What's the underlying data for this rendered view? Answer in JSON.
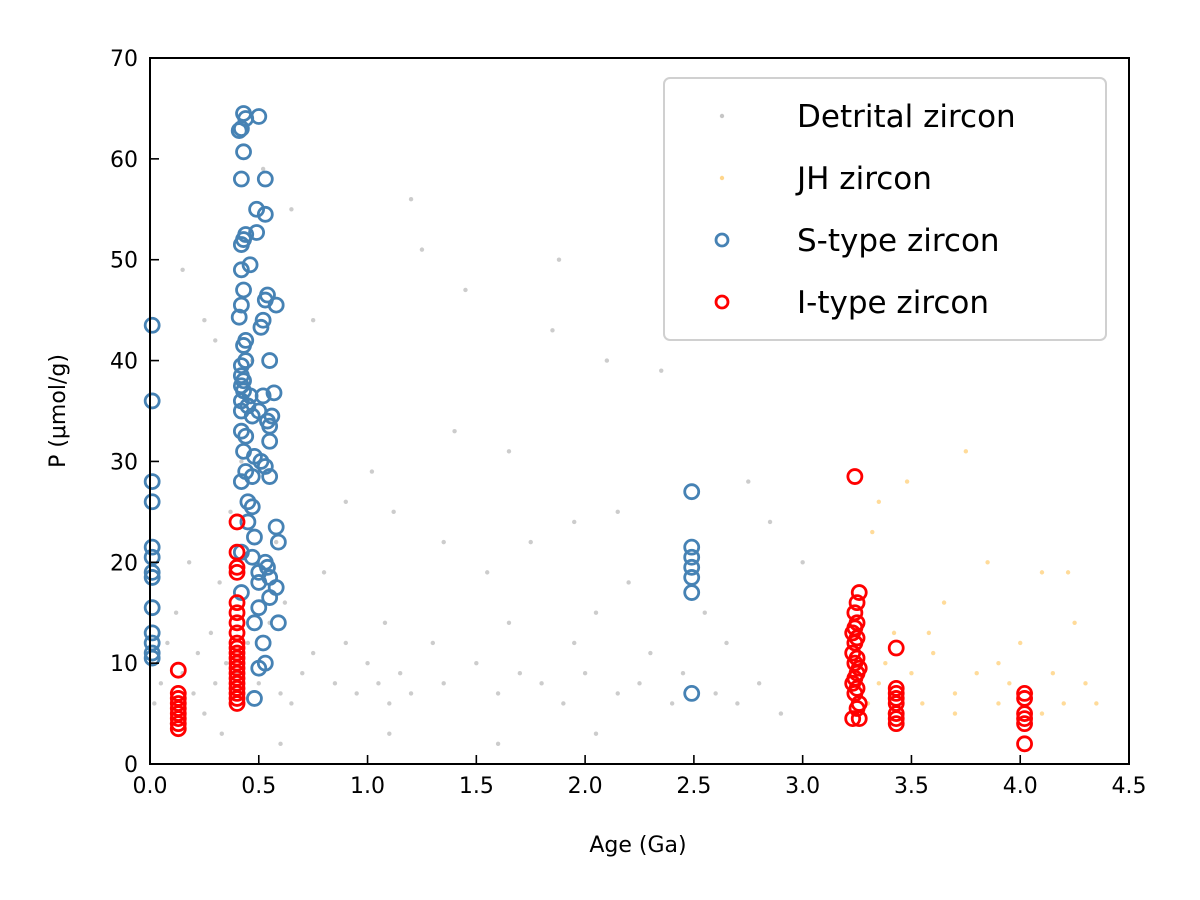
{
  "chart_data": {
    "type": "scatter",
    "title": "",
    "xlabel": "Age (Ga)",
    "ylabel": "P (μmol/g)",
    "xlim": [
      0,
      4.5
    ],
    "ylim": [
      0,
      70
    ],
    "xticks": [
      0.0,
      0.5,
      1.0,
      1.5,
      2.0,
      2.5,
      3.0,
      3.5,
      4.0,
      4.5
    ],
    "xtick_labels": [
      "0.0",
      "0.5",
      "1.0",
      "1.5",
      "2.0",
      "2.5",
      "3.0",
      "3.5",
      "4.0",
      "4.5"
    ],
    "yticks": [
      0,
      10,
      20,
      30,
      40,
      50,
      60,
      70
    ],
    "ytick_labels": [
      "0",
      "10",
      "20",
      "30",
      "40",
      "50",
      "60",
      "70"
    ],
    "grid": false,
    "legend": "top-right",
    "legend_entries": [
      "Detrital zircon",
      "JH zircon",
      "S-type zircon",
      "I-type zircon"
    ],
    "colors": {
      "detrital": "#808080",
      "jh": "#FFA500",
      "s_type": "#4682B4",
      "i_type": "#FF0000"
    },
    "series": [
      {
        "name": "Detrital zircon",
        "marker": "dot",
        "color": "#808080",
        "points": [
          [
            0.02,
            6
          ],
          [
            0.05,
            8
          ],
          [
            0.08,
            12
          ],
          [
            0.1,
            4
          ],
          [
            0.12,
            15
          ],
          [
            0.15,
            9
          ],
          [
            0.18,
            20
          ],
          [
            0.2,
            7
          ],
          [
            0.22,
            11
          ],
          [
            0.25,
            5
          ],
          [
            0.28,
            13
          ],
          [
            0.3,
            8
          ],
          [
            0.32,
            18
          ],
          [
            0.35,
            10
          ],
          [
            0.37,
            25
          ],
          [
            0.4,
            9
          ],
          [
            0.42,
            30
          ],
          [
            0.45,
            12
          ],
          [
            0.47,
            40
          ],
          [
            0.5,
            8
          ],
          [
            0.52,
            59
          ],
          [
            0.55,
            14
          ],
          [
            0.58,
            22
          ],
          [
            0.6,
            7
          ],
          [
            0.62,
            16
          ],
          [
            0.65,
            6
          ],
          [
            0.7,
            9
          ],
          [
            0.75,
            11
          ],
          [
            0.8,
            19
          ],
          [
            0.85,
            8
          ],
          [
            0.9,
            12
          ],
          [
            0.95,
            7
          ],
          [
            1.0,
            10
          ],
          [
            1.02,
            29
          ],
          [
            1.05,
            8
          ],
          [
            1.08,
            14
          ],
          [
            1.1,
            6
          ],
          [
            1.12,
            25
          ],
          [
            1.15,
            9
          ],
          [
            1.2,
            7
          ],
          [
            1.25,
            51
          ],
          [
            1.3,
            12
          ],
          [
            1.35,
            8
          ],
          [
            1.4,
            33
          ],
          [
            1.45,
            47
          ],
          [
            1.5,
            10
          ],
          [
            1.55,
            19
          ],
          [
            1.6,
            7
          ],
          [
            1.65,
            14
          ],
          [
            1.7,
            9
          ],
          [
            1.75,
            22
          ],
          [
            1.8,
            8
          ],
          [
            1.85,
            43
          ],
          [
            1.88,
            50
          ],
          [
            1.9,
            6
          ],
          [
            1.95,
            12
          ],
          [
            2.0,
            9
          ],
          [
            2.05,
            15
          ],
          [
            2.1,
            40
          ],
          [
            2.15,
            7
          ],
          [
            2.2,
            18
          ],
          [
            2.25,
            8
          ],
          [
            2.3,
            11
          ],
          [
            2.35,
            39
          ],
          [
            2.4,
            6
          ],
          [
            2.45,
            9
          ],
          [
            2.55,
            15
          ],
          [
            2.6,
            7
          ],
          [
            2.65,
            12
          ],
          [
            2.7,
            6
          ],
          [
            2.75,
            28
          ],
          [
            2.8,
            8
          ],
          [
            2.85,
            24
          ],
          [
            2.9,
            5
          ],
          [
            3.0,
            20
          ],
          [
            0.15,
            49
          ],
          [
            0.25,
            44
          ],
          [
            0.3,
            42
          ],
          [
            0.65,
            55
          ],
          [
            0.75,
            44
          ],
          [
            1.2,
            56
          ],
          [
            0.9,
            26
          ],
          [
            1.35,
            22
          ],
          [
            1.65,
            31
          ],
          [
            1.95,
            24
          ],
          [
            2.15,
            25
          ],
          [
            0.33,
            3
          ],
          [
            0.6,
            2
          ],
          [
            1.1,
            3
          ],
          [
            1.6,
            2
          ],
          [
            2.05,
            3
          ]
        ]
      },
      {
        "name": "JH zircon",
        "marker": "dot",
        "color": "#FFA500",
        "points": [
          [
            3.3,
            6
          ],
          [
            3.32,
            23
          ],
          [
            3.35,
            8
          ],
          [
            3.38,
            10
          ],
          [
            3.4,
            5
          ],
          [
            3.42,
            13
          ],
          [
            3.45,
            7
          ],
          [
            3.48,
            28
          ],
          [
            3.5,
            9
          ],
          [
            3.55,
            6
          ],
          [
            3.6,
            11
          ],
          [
            3.65,
            16
          ],
          [
            3.7,
            7
          ],
          [
            3.75,
            31
          ],
          [
            3.8,
            9
          ],
          [
            3.85,
            20
          ],
          [
            3.9,
            6
          ],
          [
            3.95,
            8
          ],
          [
            4.0,
            12
          ],
          [
            4.05,
            7
          ],
          [
            4.1,
            19
          ],
          [
            4.15,
            9
          ],
          [
            4.2,
            6
          ],
          [
            4.25,
            14
          ],
          [
            4.3,
            8
          ],
          [
            4.35,
            6
          ],
          [
            3.45,
            4
          ],
          [
            3.7,
            5
          ],
          [
            3.9,
            10
          ],
          [
            4.1,
            5
          ],
          [
            4.22,
            19
          ],
          [
            3.35,
            26
          ],
          [
            3.58,
            13
          ]
        ]
      },
      {
        "name": "S-type zircon",
        "marker": "open-circle",
        "color": "#4682B4",
        "points": [
          [
            0.01,
            43.5
          ],
          [
            0.01,
            36
          ],
          [
            0.01,
            28
          ],
          [
            0.01,
            26
          ],
          [
            0.01,
            21.5
          ],
          [
            0.01,
            20.5
          ],
          [
            0.01,
            19
          ],
          [
            0.01,
            18.5
          ],
          [
            0.01,
            15.5
          ],
          [
            0.01,
            13
          ],
          [
            0.01,
            12
          ],
          [
            0.01,
            11
          ],
          [
            0.01,
            10.5
          ],
          [
            0.43,
            64.5
          ],
          [
            0.44,
            64
          ],
          [
            0.5,
            64.2
          ],
          [
            0.42,
            63
          ],
          [
            0.41,
            62.8
          ],
          [
            0.43,
            60.7
          ],
          [
            0.42,
            58
          ],
          [
            0.53,
            58
          ],
          [
            0.49,
            55
          ],
          [
            0.53,
            54.5
          ],
          [
            0.49,
            52.7
          ],
          [
            0.43,
            52
          ],
          [
            0.44,
            52.5
          ],
          [
            0.42,
            51.5
          ],
          [
            0.46,
            49.5
          ],
          [
            0.42,
            49
          ],
          [
            0.43,
            47
          ],
          [
            0.54,
            46.5
          ],
          [
            0.53,
            46
          ],
          [
            0.58,
            45.5
          ],
          [
            0.42,
            45.5
          ],
          [
            0.41,
            44.3
          ],
          [
            0.52,
            44
          ],
          [
            0.51,
            43.3
          ],
          [
            0.44,
            42
          ],
          [
            0.43,
            41.5
          ],
          [
            0.44,
            40
          ],
          [
            0.55,
            40
          ],
          [
            0.42,
            39.5
          ],
          [
            0.42,
            38.5
          ],
          [
            0.43,
            38
          ],
          [
            0.42,
            37.5
          ],
          [
            0.43,
            37
          ],
          [
            0.46,
            36.5
          ],
          [
            0.52,
            36.5
          ],
          [
            0.57,
            36.8
          ],
          [
            0.42,
            36
          ],
          [
            0.45,
            35.5
          ],
          [
            0.42,
            35
          ],
          [
            0.47,
            34.5
          ],
          [
            0.5,
            35
          ],
          [
            0.54,
            34
          ],
          [
            0.56,
            34.5
          ],
          [
            0.55,
            33.5
          ],
          [
            0.42,
            33
          ],
          [
            0.44,
            32.5
          ],
          [
            0.55,
            32
          ],
          [
            0.43,
            31
          ],
          [
            0.48,
            30.5
          ],
          [
            0.51,
            30
          ],
          [
            0.53,
            29.5
          ],
          [
            0.44,
            29
          ],
          [
            0.47,
            28.5
          ],
          [
            0.42,
            28
          ],
          [
            0.55,
            28.5
          ],
          [
            0.45,
            26
          ],
          [
            0.47,
            25.5
          ],
          [
            0.45,
            24
          ],
          [
            0.58,
            23.5
          ],
          [
            0.48,
            22.5
          ],
          [
            0.59,
            22
          ],
          [
            0.42,
            21
          ],
          [
            0.47,
            20.5
          ],
          [
            0.53,
            20
          ],
          [
            0.54,
            19.5
          ],
          [
            0.5,
            19
          ],
          [
            0.55,
            18.5
          ],
          [
            0.5,
            18
          ],
          [
            0.58,
            17.5
          ],
          [
            0.42,
            17
          ],
          [
            0.55,
            16.5
          ],
          [
            0.5,
            15.5
          ],
          [
            0.48,
            14
          ],
          [
            0.59,
            14
          ],
          [
            0.52,
            12
          ],
          [
            0.53,
            10
          ],
          [
            0.5,
            9.5
          ],
          [
            0.48,
            6.5
          ],
          [
            2.49,
            27
          ],
          [
            2.49,
            21.5
          ],
          [
            2.49,
            20.5
          ],
          [
            2.49,
            19.5
          ],
          [
            2.49,
            18.5
          ],
          [
            2.49,
            17
          ],
          [
            2.49,
            7
          ]
        ]
      },
      {
        "name": "I-type zircon",
        "marker": "open-circle",
        "color": "#FF0000",
        "points": [
          [
            0.13,
            9.3
          ],
          [
            0.13,
            7
          ],
          [
            0.13,
            6.5
          ],
          [
            0.13,
            6
          ],
          [
            0.13,
            5.5
          ],
          [
            0.13,
            5
          ],
          [
            0.13,
            4.5
          ],
          [
            0.13,
            4
          ],
          [
            0.13,
            3.5
          ],
          [
            0.4,
            24
          ],
          [
            0.4,
            21
          ],
          [
            0.4,
            19.5
          ],
          [
            0.4,
            19
          ],
          [
            0.4,
            16
          ],
          [
            0.4,
            15
          ],
          [
            0.4,
            14
          ],
          [
            0.4,
            13
          ],
          [
            0.4,
            12
          ],
          [
            0.4,
            11.5
          ],
          [
            0.4,
            11
          ],
          [
            0.4,
            10.5
          ],
          [
            0.4,
            10
          ],
          [
            0.4,
            9.5
          ],
          [
            0.4,
            9
          ],
          [
            0.4,
            8.5
          ],
          [
            0.4,
            8
          ],
          [
            0.4,
            7.5
          ],
          [
            0.4,
            7
          ],
          [
            0.4,
            6.5
          ],
          [
            0.4,
            6
          ],
          [
            3.24,
            28.5
          ],
          [
            3.26,
            17
          ],
          [
            3.25,
            16
          ],
          [
            3.24,
            15
          ],
          [
            3.25,
            14
          ],
          [
            3.24,
            13.5
          ],
          [
            3.23,
            13
          ],
          [
            3.25,
            12.5
          ],
          [
            3.24,
            12
          ],
          [
            3.23,
            11
          ],
          [
            3.25,
            10.5
          ],
          [
            3.24,
            10
          ],
          [
            3.26,
            9.5
          ],
          [
            3.25,
            9
          ],
          [
            3.24,
            8.5
          ],
          [
            3.23,
            8
          ],
          [
            3.25,
            7.5
          ],
          [
            3.24,
            7
          ],
          [
            3.26,
            6
          ],
          [
            3.25,
            5.5
          ],
          [
            3.23,
            4.5
          ],
          [
            3.26,
            4.5
          ],
          [
            3.43,
            11.5
          ],
          [
            3.43,
            7.5
          ],
          [
            3.43,
            7
          ],
          [
            3.43,
            6.5
          ],
          [
            3.43,
            6
          ],
          [
            3.43,
            5
          ],
          [
            3.43,
            4.5
          ],
          [
            3.43,
            4
          ],
          [
            4.02,
            7
          ],
          [
            4.02,
            6.5
          ],
          [
            4.02,
            5
          ],
          [
            4.02,
            4.5
          ],
          [
            4.02,
            4
          ],
          [
            4.02,
            2
          ]
        ]
      }
    ]
  }
}
